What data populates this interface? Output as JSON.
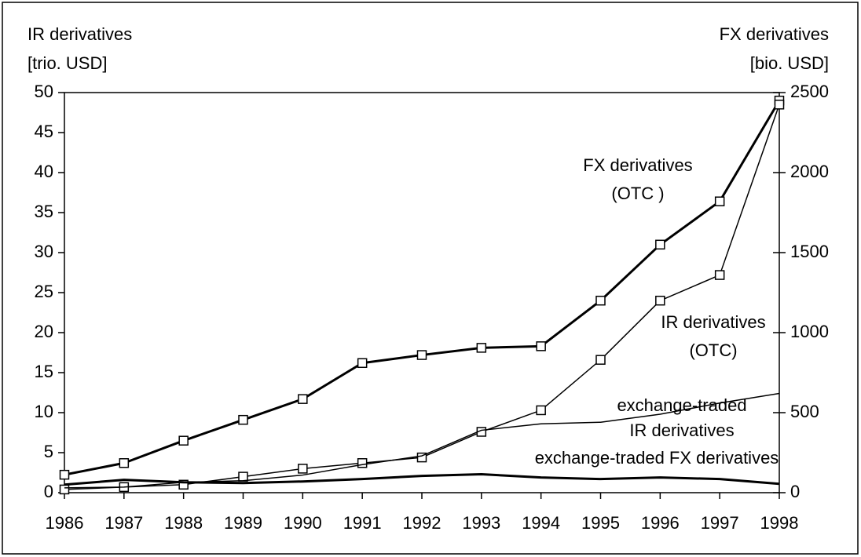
{
  "chart_data": {
    "type": "line",
    "categories": [
      "1986",
      "1987",
      "1988",
      "1989",
      "1990",
      "1991",
      "1992",
      "1993",
      "1994",
      "1995",
      "1996",
      "1997",
      "1998"
    ],
    "ylabel": [
      "IR derivatives",
      "[trio. USD]"
    ],
    "y2label": [
      "FX derivatives",
      "[bio. USD]"
    ],
    "ylim": [
      0,
      50
    ],
    "yticks": [
      0,
      5,
      10,
      15,
      20,
      25,
      30,
      35,
      40,
      45,
      50
    ],
    "y2lim": [
      0,
      2500
    ],
    "y2ticks": [
      0,
      500,
      1000,
      1500,
      2000,
      2500
    ],
    "series": [
      {
        "color": "#000000",
        "axis": "y2",
        "width": 3,
        "markers": true,
        "values": [
          112,
          185,
          325,
          455,
          585,
          810,
          860,
          905,
          915,
          1200,
          1550,
          1820,
          2450
        ]
      },
      {
        "color": "#000000",
        "axis": "y",
        "width": 1.5,
        "markers": true,
        "values": [
          0.4,
          0.7,
          1.0,
          2.0,
          3.0,
          3.7,
          4.4,
          7.6,
          10.3,
          16.6,
          24,
          27.2,
          48.5
        ]
      },
      {
        "color": "#000000",
        "axis": "y",
        "width": 1.5,
        "markers": false,
        "values": [
          0.6,
          0.7,
          1.3,
          1.5,
          2.2,
          3.5,
          4.6,
          7.8,
          8.6,
          8.8,
          9.8,
          11.2,
          12.4
        ]
      },
      {
        "color": "#000000",
        "axis": "y2",
        "width": 3,
        "markers": false,
        "values": [
          50,
          80,
          65,
          60,
          70,
          85,
          105,
          115,
          95,
          85,
          95,
          85,
          55
        ]
      }
    ],
    "annotations": [
      {
        "text": "FX derivatives"
      },
      {
        "text": "(OTC )"
      },
      {
        "text": "IR derivatives"
      },
      {
        "text": "(OTC)"
      },
      {
        "text": "exchange-traded"
      },
      {
        "text": "IR derivatives"
      },
      {
        "text": "exchange-traded FX derivatives"
      }
    ]
  }
}
